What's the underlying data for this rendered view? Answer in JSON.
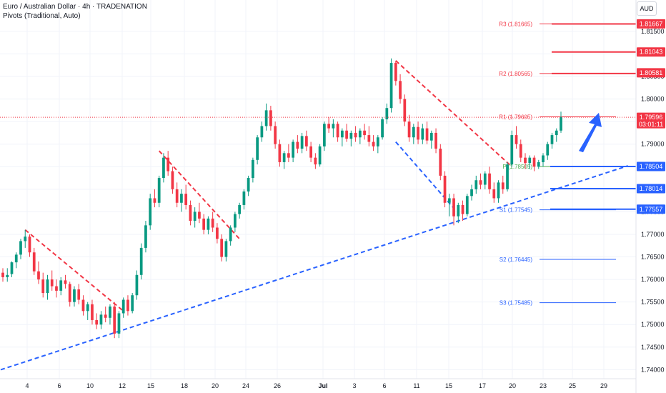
{
  "header": {
    "symbol_title": "Euro / Australian Dollar · 4h · TRADENATION",
    "indicator": "Pivots (Traditional, Auto)",
    "currency": "AUD"
  },
  "colors": {
    "up": "#089981",
    "down": "#f23645",
    "resistance": "#f23645",
    "support": "#2962ff",
    "pivot": "#4caf50",
    "grid": "#f0f3fa",
    "axis_text": "#131722"
  },
  "chart_data": {
    "type": "candlestick",
    "timeframe": "4h",
    "ylim": [
      1.738,
      1.821
    ],
    "y_ticks": [
      "1.74000",
      "1.74500",
      "1.75000",
      "1.75500",
      "1.76000",
      "1.76500",
      "1.77000",
      "1.77500",
      "1.78000",
      "1.78500",
      "1.79000",
      "1.79500",
      "1.80000",
      "1.80500",
      "1.81000",
      "1.81500"
    ],
    "x_ticks": [
      "4",
      "6",
      "10",
      "12",
      "15",
      "18",
      "20",
      "24",
      "26",
      "Jul",
      "3",
      "6",
      "11",
      "15",
      "17",
      "20",
      "23",
      "25",
      "29"
    ],
    "candles": [
      [
        1.7615,
        1.7625,
        1.7595,
        1.7605
      ],
      [
        1.7605,
        1.7625,
        1.7595,
        1.761
      ],
      [
        1.7612,
        1.764,
        1.7605,
        1.7638
      ],
      [
        1.7638,
        1.766,
        1.7625,
        1.7655
      ],
      [
        1.7655,
        1.769,
        1.7645,
        1.7685
      ],
      [
        1.7685,
        1.771,
        1.767,
        1.7695
      ],
      [
        1.7695,
        1.77,
        1.765,
        1.766
      ],
      [
        1.766,
        1.767,
        1.761,
        1.7618
      ],
      [
        1.7618,
        1.764,
        1.759,
        1.76
      ],
      [
        1.76,
        1.7615,
        1.756,
        1.757
      ],
      [
        1.757,
        1.761,
        1.7555,
        1.76
      ],
      [
        1.76,
        1.762,
        1.7575,
        1.7585
      ],
      [
        1.7585,
        1.76,
        1.756,
        1.7575
      ],
      [
        1.7575,
        1.7605,
        1.7565,
        1.7598
      ],
      [
        1.7598,
        1.761,
        1.758,
        1.759
      ],
      [
        1.759,
        1.7595,
        1.754,
        1.755
      ],
      [
        1.755,
        1.7585,
        1.754,
        1.7578
      ],
      [
        1.7578,
        1.759,
        1.7545,
        1.7555
      ],
      [
        1.7555,
        1.7565,
        1.752,
        1.753
      ],
      [
        1.753,
        1.755,
        1.751,
        1.7545
      ],
      [
        1.7545,
        1.7555,
        1.75,
        1.751
      ],
      [
        1.751,
        1.7525,
        1.749,
        1.75
      ],
      [
        1.75,
        1.753,
        1.749,
        1.7522
      ],
      [
        1.7522,
        1.754,
        1.7505,
        1.7515
      ],
      [
        1.7515,
        1.7545,
        1.75,
        1.754
      ],
      [
        1.754,
        1.755,
        1.747,
        1.748
      ],
      [
        1.748,
        1.753,
        1.747,
        1.7525
      ],
      [
        1.7525,
        1.756,
        1.7515,
        1.7555
      ],
      [
        1.7555,
        1.7565,
        1.752,
        1.753
      ],
      [
        1.753,
        1.757,
        1.7525,
        1.7565
      ],
      [
        1.7565,
        1.762,
        1.7555,
        1.761
      ],
      [
        1.761,
        1.768,
        1.76,
        1.767
      ],
      [
        1.767,
        1.773,
        1.766,
        1.772
      ],
      [
        1.772,
        1.779,
        1.771,
        1.778
      ],
      [
        1.778,
        1.78,
        1.776,
        1.777
      ],
      [
        1.777,
        1.783,
        1.776,
        1.7825
      ],
      [
        1.7825,
        1.788,
        1.7815,
        1.787
      ],
      [
        1.787,
        1.7885,
        1.783,
        1.784
      ],
      [
        1.784,
        1.785,
        1.779,
        1.78
      ],
      [
        1.78,
        1.7815,
        1.776,
        1.777
      ],
      [
        1.777,
        1.78,
        1.775,
        1.779
      ],
      [
        1.779,
        1.781,
        1.7755,
        1.7765
      ],
      [
        1.7765,
        1.7775,
        1.772,
        1.773
      ],
      [
        1.773,
        1.776,
        1.7715,
        1.775
      ],
      [
        1.775,
        1.777,
        1.7725,
        1.7735
      ],
      [
        1.7735,
        1.7745,
        1.77,
        1.771
      ],
      [
        1.771,
        1.774,
        1.77,
        1.7735
      ],
      [
        1.7735,
        1.775,
        1.7705,
        1.7715
      ],
      [
        1.7715,
        1.7725,
        1.768,
        1.769
      ],
      [
        1.769,
        1.77,
        1.764,
        1.765
      ],
      [
        1.765,
        1.769,
        1.764,
        1.7685
      ],
      [
        1.7685,
        1.772,
        1.7675,
        1.7715
      ],
      [
        1.7715,
        1.775,
        1.7705,
        1.7745
      ],
      [
        1.7745,
        1.777,
        1.7735,
        1.7765
      ],
      [
        1.7765,
        1.78,
        1.7755,
        1.7795
      ],
      [
        1.7795,
        1.783,
        1.7785,
        1.7825
      ],
      [
        1.7825,
        1.787,
        1.7815,
        1.7865
      ],
      [
        1.7865,
        1.792,
        1.7855,
        1.7915
      ],
      [
        1.7915,
        1.795,
        1.7905,
        1.794
      ],
      [
        1.794,
        1.799,
        1.793,
        1.7975
      ],
      [
        1.7975,
        1.7985,
        1.793,
        1.794
      ],
      [
        1.794,
        1.795,
        1.789,
        1.79
      ],
      [
        1.79,
        1.791,
        1.785,
        1.786
      ],
      [
        1.786,
        1.7885,
        1.7845,
        1.788
      ],
      [
        1.788,
        1.79,
        1.786,
        1.787
      ],
      [
        1.787,
        1.791,
        1.786,
        1.7905
      ],
      [
        1.7905,
        1.792,
        1.788,
        1.789
      ],
      [
        1.789,
        1.7925,
        1.788,
        1.7918
      ],
      [
        1.7918,
        1.793,
        1.7885,
        1.7895
      ],
      [
        1.7895,
        1.7905,
        1.786,
        1.787
      ],
      [
        1.787,
        1.788,
        1.7845,
        1.7855
      ],
      [
        1.7855,
        1.79,
        1.785,
        1.7895
      ],
      [
        1.7895,
        1.795,
        1.7885,
        1.7945
      ],
      [
        1.7945,
        1.796,
        1.7925,
        1.7935
      ],
      [
        1.7935,
        1.7955,
        1.7915,
        1.7945
      ],
      [
        1.7945,
        1.795,
        1.7905,
        1.7915
      ],
      [
        1.7915,
        1.7935,
        1.7895,
        1.793
      ],
      [
        1.793,
        1.7945,
        1.7905,
        1.7912
      ],
      [
        1.7912,
        1.793,
        1.7895,
        1.7925
      ],
      [
        1.7925,
        1.794,
        1.7905,
        1.7915
      ],
      [
        1.7915,
        1.7935,
        1.79,
        1.793
      ],
      [
        1.793,
        1.7945,
        1.791,
        1.792
      ],
      [
        1.792,
        1.794,
        1.7895,
        1.7905
      ],
      [
        1.7905,
        1.792,
        1.7885,
        1.7895
      ],
      [
        1.7895,
        1.792,
        1.788,
        1.7915
      ],
      [
        1.7915,
        1.796,
        1.791,
        1.7955
      ],
      [
        1.7955,
        1.799,
        1.7945,
        1.798
      ],
      [
        1.798,
        1.809,
        1.797,
        1.808
      ],
      [
        1.808,
        1.8085,
        1.803,
        1.804
      ],
      [
        1.804,
        1.8055,
        1.799,
        1.8
      ],
      [
        1.8,
        1.801,
        1.794,
        1.795
      ],
      [
        1.795,
        1.7965,
        1.7905,
        1.7915
      ],
      [
        1.7915,
        1.7945,
        1.79,
        1.7938
      ],
      [
        1.7938,
        1.795,
        1.79,
        1.791
      ],
      [
        1.791,
        1.7945,
        1.79,
        1.7935
      ],
      [
        1.7935,
        1.795,
        1.79,
        1.7908
      ],
      [
        1.7908,
        1.793,
        1.789,
        1.7925
      ],
      [
        1.7925,
        1.7935,
        1.788,
        1.789
      ],
      [
        1.789,
        1.79,
        1.782,
        1.783
      ],
      [
        1.783,
        1.784,
        1.776,
        1.777
      ],
      [
        1.777,
        1.779,
        1.774,
        1.778
      ],
      [
        1.778,
        1.779,
        1.772,
        1.774
      ],
      [
        1.774,
        1.777,
        1.7725,
        1.7765
      ],
      [
        1.7765,
        1.7775,
        1.773,
        1.7745
      ],
      [
        1.7745,
        1.779,
        1.774,
        1.7785
      ],
      [
        1.7785,
        1.781,
        1.7775,
        1.78
      ],
      [
        1.78,
        1.783,
        1.779,
        1.782
      ],
      [
        1.782,
        1.7835,
        1.78,
        1.781
      ],
      [
        1.781,
        1.784,
        1.78,
        1.7835
      ],
      [
        1.7835,
        1.785,
        1.779,
        1.78
      ],
      [
        1.78,
        1.7815,
        1.777,
        1.778
      ],
      [
        1.778,
        1.782,
        1.777,
        1.7815
      ],
      [
        1.7815,
        1.783,
        1.779,
        1.78
      ],
      [
        1.78,
        1.786,
        1.7795,
        1.7855
      ],
      [
        1.7855,
        1.793,
        1.785,
        1.792
      ],
      [
        1.792,
        1.794,
        1.789,
        1.79
      ],
      [
        1.79,
        1.791,
        1.786,
        1.787
      ],
      [
        1.787,
        1.788,
        1.7845,
        1.7858
      ],
      [
        1.7858,
        1.7875,
        1.7845,
        1.787
      ],
      [
        1.787,
        1.7875,
        1.784,
        1.785
      ],
      [
        1.785,
        1.7865,
        1.7845,
        1.786
      ],
      [
        1.786,
        1.788,
        1.785,
        1.7875
      ],
      [
        1.7875,
        1.7905,
        1.7865,
        1.79
      ],
      [
        1.79,
        1.7925,
        1.789,
        1.792
      ],
      [
        1.792,
        1.7935,
        1.7905,
        1.793
      ],
      [
        1.793,
        1.7972,
        1.7925,
        1.796
      ]
    ],
    "pivots": [
      {
        "label": "R3 (1.81665)",
        "value": 1.81665,
        "kind": "resistance"
      },
      {
        "label": "R2 (1.80565)",
        "value": 1.80565,
        "kind": "resistance"
      },
      {
        "label": "R1 (1.79605)",
        "value": 1.79605,
        "kind": "resistance"
      },
      {
        "label": "P (1.78505)",
        "value": 1.78505,
        "kind": "pivot"
      },
      {
        "label": "S1 (1.77545)",
        "value": 1.77545,
        "kind": "support"
      },
      {
        "label": "S2 (1.76445)",
        "value": 1.76445,
        "kind": "support"
      },
      {
        "label": "S3 (1.75485)",
        "value": 1.75485,
        "kind": "support"
      }
    ],
    "price_labels": [
      {
        "text": "1.81667",
        "value": 1.81667,
        "color": "#f23645"
      },
      {
        "text": "1.81043",
        "value": 1.81043,
        "color": "#f23645"
      },
      {
        "text": "1.80581",
        "value": 1.80581,
        "color": "#f23645"
      },
      {
        "text": "1.79596",
        "value": 1.79596,
        "color": "#f23645",
        "countdown": "03:01:11"
      },
      {
        "text": "1.78504",
        "value": 1.78504,
        "color": "#2962ff"
      },
      {
        "text": "1.78014",
        "value": 1.78014,
        "color": "#2962ff"
      },
      {
        "text": "1.77557",
        "value": 1.77557,
        "color": "#2962ff"
      }
    ],
    "current_price": 1.79596
  }
}
